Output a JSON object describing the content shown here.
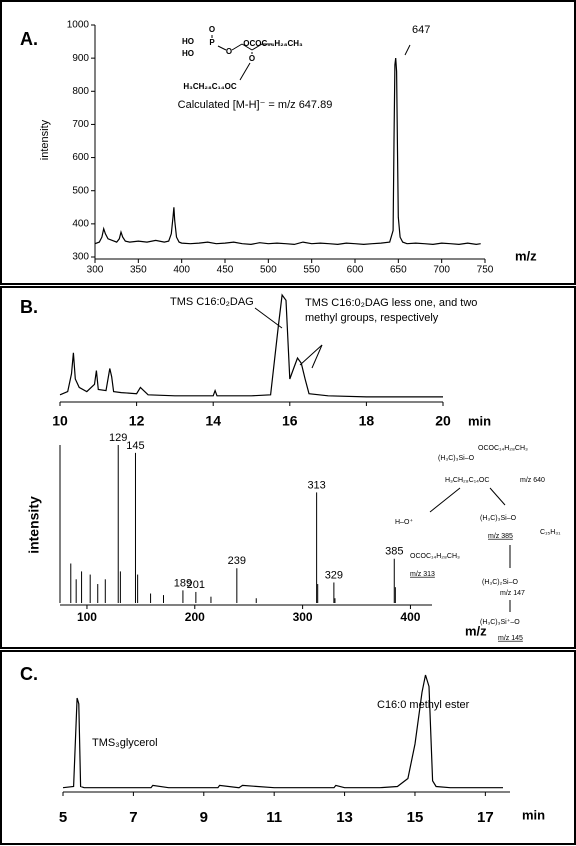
{
  "chart_data": [
    {
      "type": "line",
      "panel": "A.",
      "ylabel": "intensity",
      "xlabel": "m/z",
      "xlim": [
        300,
        750
      ],
      "ylim": [
        300,
        1000
      ],
      "xticks": [
        300,
        350,
        400,
        450,
        500,
        550,
        600,
        650,
        700,
        750
      ],
      "yticks": [
        300,
        400,
        500,
        600,
        700,
        800,
        900,
        1000
      ],
      "color": "#000000",
      "x": [
        300,
        305,
        308,
        310,
        312,
        315,
        320,
        325,
        328,
        330,
        332,
        335,
        340,
        350,
        360,
        370,
        380,
        385,
        388,
        390,
        391,
        392,
        394,
        397,
        400,
        410,
        420,
        430,
        440,
        450,
        460,
        470,
        480,
        490,
        500,
        510,
        520,
        530,
        540,
        550,
        560,
        570,
        580,
        590,
        600,
        610,
        620,
        630,
        640,
        644,
        645,
        646,
        647,
        648,
        649,
        650,
        652,
        655,
        660,
        670,
        680,
        690,
        700,
        710,
        720,
        730,
        740,
        745
      ],
      "values": [
        340,
        345,
        360,
        385,
        370,
        355,
        350,
        345,
        355,
        375,
        360,
        348,
        345,
        348,
        345,
        350,
        345,
        348,
        370,
        420,
        450,
        410,
        360,
        345,
        342,
        340,
        342,
        345,
        340,
        342,
        345,
        340,
        338,
        343,
        340,
        342,
        340,
        338,
        345,
        340,
        342,
        340,
        338,
        342,
        340,
        338,
        340,
        342,
        345,
        380,
        650,
        880,
        900,
        860,
        620,
        420,
        360,
        345,
        340,
        342,
        340,
        338,
        342,
        340,
        338,
        342,
        338,
        340
      ],
      "annotations": [
        "647",
        "Calculated [M-H]⁻ = m/z 647.89"
      ],
      "structure": [
        "O",
        "HO",
        "P",
        "HO",
        "O",
        "O",
        "OCOC₁₄H₂₈CH₃",
        "H₃CH₂₈C₁₄OC"
      ]
    },
    {
      "type": "line",
      "panel": "B.",
      "xlabel": "min",
      "xlim": [
        10,
        20
      ],
      "xticks": [
        10,
        12,
        14,
        16,
        18,
        20
      ],
      "color": "#000000",
      "x": [
        10,
        10.2,
        10.3,
        10.35,
        10.4,
        10.5,
        10.7,
        10.9,
        10.95,
        11,
        11.2,
        11.3,
        11.35,
        11.4,
        11.6,
        12,
        12.1,
        12.3,
        13,
        14,
        14.05,
        14.1,
        15,
        15.5,
        15.7,
        15.8,
        15.9,
        16,
        16.1,
        16.2,
        16.3,
        16.4,
        16.5,
        17,
        18,
        19,
        20
      ],
      "values": [
        5,
        8,
        25,
        45,
        20,
        12,
        8,
        15,
        28,
        10,
        9,
        30,
        22,
        8,
        7,
        6,
        12,
        5,
        4,
        4,
        9,
        4,
        4,
        5,
        70,
        100,
        95,
        20,
        30,
        40,
        35,
        20,
        6,
        4,
        3,
        3,
        3
      ],
      "annotations": [
        "TMS C16:0₂DAG",
        "TMS C16:0₂DAG less one, and two",
        "methyl groups, respectively"
      ]
    },
    {
      "type": "stem",
      "ylabel": "intensity",
      "xlabel": "m/z",
      "xlim": [
        75,
        420
      ],
      "xticks": [
        100,
        200,
        300,
        400
      ],
      "color": "#000000",
      "labeled_x": [
        129,
        145,
        189,
        201,
        239,
        313,
        329,
        385
      ],
      "labeled_values": [
        100,
        95,
        8,
        7,
        22,
        70,
        13,
        28
      ],
      "x": [
        75,
        85,
        90,
        95,
        103,
        110,
        117,
        131,
        147,
        159,
        171,
        215,
        257,
        314,
        330,
        386
      ],
      "values": [
        100,
        25,
        15,
        20,
        18,
        12,
        15,
        20,
        18,
        6,
        5,
        4,
        3,
        12,
        3,
        10
      ],
      "scheme": [
        "(H₃C)₃Si–O",
        "OCOC₁₄H₂₈CH₃",
        "H₃CH₂₈C₁₄OC",
        "m/z 640",
        "H–O⁺",
        "OCOC₁₄H₂₈CH₃",
        "m/z 313",
        "(H₃C)₃Si–O",
        "C₁₅H₃₁",
        "m/z 385",
        "(H₃C)₂Si–O",
        "m/z 147",
        "(H₃C)₃Si⁺–O",
        "m/z 145"
      ]
    },
    {
      "type": "line",
      "panel": "C.",
      "xlabel": "min",
      "xlim": [
        5,
        17.7
      ],
      "xticks": [
        5,
        7,
        9,
        11,
        13,
        15,
        17
      ],
      "color": "#000000",
      "x": [
        5,
        5.3,
        5.4,
        5.45,
        5.5,
        5.6,
        6,
        7,
        7.5,
        7.55,
        8,
        9,
        9.4,
        9.45,
        10,
        10.1,
        11,
        12,
        12.7,
        12.75,
        13,
        14,
        14.5,
        14.8,
        15,
        15.2,
        15.3,
        15.4,
        15.5,
        15.6,
        16,
        17,
        17.5
      ],
      "values": [
        2,
        3,
        80,
        75,
        3,
        2,
        2,
        2,
        2,
        4,
        2,
        2,
        2,
        4,
        2,
        4,
        2,
        2,
        2,
        4,
        2,
        2,
        3,
        10,
        40,
        85,
        100,
        90,
        8,
        3,
        2,
        2,
        2
      ],
      "annotations": [
        "TMS₃glycerol",
        "C16:0 methyl ester"
      ]
    }
  ]
}
